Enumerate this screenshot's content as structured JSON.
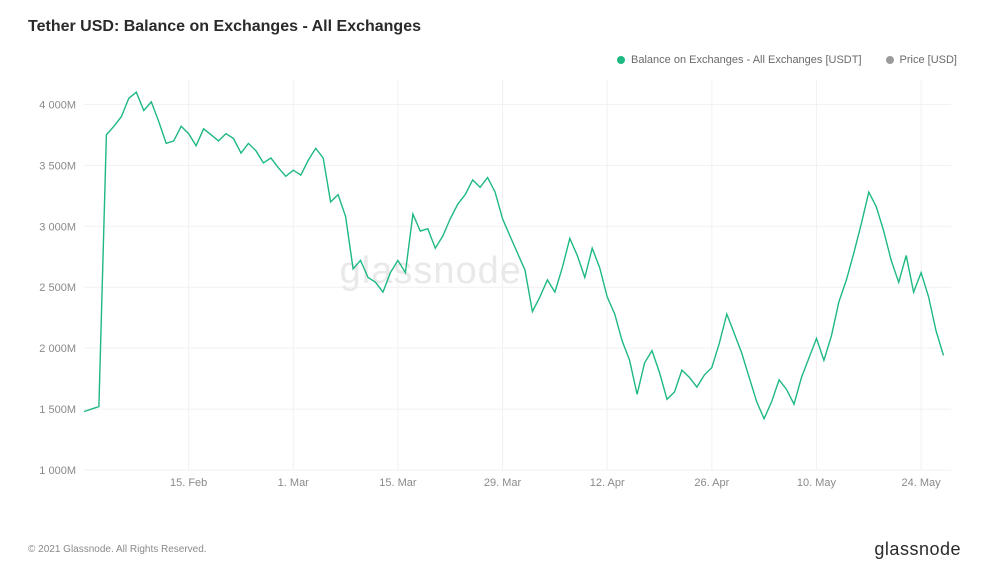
{
  "chart": {
    "type": "line",
    "title": "Tether USD: Balance on Exchanges - All Exchanges",
    "watermark": "glassnode",
    "background_color": "#ffffff",
    "grid_color": "#f1f1f1",
    "axis_text_color": "#8a8a8a",
    "title_color": "#2a2a2a",
    "title_fontsize": 16,
    "tick_fontsize": 11,
    "line_width": 1.4,
    "legend": [
      {
        "label": "Balance on Exchanges - All Exchanges [USDT]",
        "color": "#1eb980"
      },
      {
        "label": "Price [USD]",
        "color": "#9a9a9a"
      }
    ],
    "y_axis": {
      "min": 1000,
      "max": 4200,
      "ticks": [
        1000,
        1500,
        2000,
        2500,
        3000,
        3500,
        4000
      ],
      "tick_labels": [
        "1 000M",
        "1 500M",
        "2 000M",
        "2 500M",
        "3 000M",
        "3 500M",
        "4 000M"
      ]
    },
    "x_axis": {
      "min": 0,
      "max": 116,
      "ticks": [
        14,
        28,
        42,
        56,
        70,
        84,
        98,
        112
      ],
      "tick_labels": [
        "15. Feb",
        "1. Mar",
        "15. Mar",
        "29. Mar",
        "12. Apr",
        "26. Apr",
        "10. May",
        "24. May"
      ]
    },
    "series": [
      {
        "name": "balance",
        "color": "#1eb980",
        "data": [
          [
            0,
            1480
          ],
          [
            1,
            1500
          ],
          [
            2,
            1520
          ],
          [
            3,
            3750
          ],
          [
            4,
            3820
          ],
          [
            5,
            3900
          ],
          [
            6,
            4050
          ],
          [
            7,
            4100
          ],
          [
            8,
            3950
          ],
          [
            9,
            4020
          ],
          [
            10,
            3860
          ],
          [
            11,
            3680
          ],
          [
            12,
            3700
          ],
          [
            13,
            3820
          ],
          [
            14,
            3760
          ],
          [
            15,
            3660
          ],
          [
            16,
            3800
          ],
          [
            17,
            3750
          ],
          [
            18,
            3700
          ],
          [
            19,
            3760
          ],
          [
            20,
            3720
          ],
          [
            21,
            3600
          ],
          [
            22,
            3680
          ],
          [
            23,
            3620
          ],
          [
            24,
            3520
          ],
          [
            25,
            3560
          ],
          [
            26,
            3480
          ],
          [
            27,
            3410
          ],
          [
            28,
            3460
          ],
          [
            29,
            3420
          ],
          [
            30,
            3540
          ],
          [
            31,
            3640
          ],
          [
            32,
            3560
          ],
          [
            33,
            3200
          ],
          [
            34,
            3260
          ],
          [
            35,
            3080
          ],
          [
            36,
            2650
          ],
          [
            37,
            2720
          ],
          [
            38,
            2580
          ],
          [
            39,
            2540
          ],
          [
            40,
            2460
          ],
          [
            41,
            2620
          ],
          [
            42,
            2720
          ],
          [
            43,
            2620
          ],
          [
            44,
            3100
          ],
          [
            45,
            2960
          ],
          [
            46,
            2980
          ],
          [
            47,
            2820
          ],
          [
            48,
            2920
          ],
          [
            49,
            3060
          ],
          [
            50,
            3180
          ],
          [
            51,
            3260
          ],
          [
            52,
            3380
          ],
          [
            53,
            3320
          ],
          [
            54,
            3400
          ],
          [
            55,
            3280
          ],
          [
            56,
            3060
          ],
          [
            57,
            2920
          ],
          [
            58,
            2780
          ],
          [
            59,
            2640
          ],
          [
            60,
            2300
          ],
          [
            61,
            2420
          ],
          [
            62,
            2560
          ],
          [
            63,
            2460
          ],
          [
            64,
            2660
          ],
          [
            65,
            2900
          ],
          [
            66,
            2760
          ],
          [
            67,
            2580
          ],
          [
            68,
            2820
          ],
          [
            69,
            2660
          ],
          [
            70,
            2420
          ],
          [
            71,
            2280
          ],
          [
            72,
            2060
          ],
          [
            73,
            1900
          ],
          [
            74,
            1620
          ],
          [
            75,
            1880
          ],
          [
            76,
            1980
          ],
          [
            77,
            1800
          ],
          [
            78,
            1580
          ],
          [
            79,
            1640
          ],
          [
            80,
            1820
          ],
          [
            81,
            1760
          ],
          [
            82,
            1680
          ],
          [
            83,
            1780
          ],
          [
            84,
            1840
          ],
          [
            85,
            2040
          ],
          [
            86,
            2280
          ],
          [
            87,
            2120
          ],
          [
            88,
            1960
          ],
          [
            89,
            1760
          ],
          [
            90,
            1560
          ],
          [
            91,
            1420
          ],
          [
            92,
            1560
          ],
          [
            93,
            1740
          ],
          [
            94,
            1660
          ],
          [
            95,
            1540
          ],
          [
            96,
            1760
          ],
          [
            97,
            1920
          ],
          [
            98,
            2080
          ],
          [
            99,
            1900
          ],
          [
            100,
            2100
          ],
          [
            101,
            2380
          ],
          [
            102,
            2560
          ],
          [
            103,
            2780
          ],
          [
            104,
            3020
          ],
          [
            105,
            3280
          ],
          [
            106,
            3160
          ],
          [
            107,
            2960
          ],
          [
            108,
            2720
          ],
          [
            109,
            2540
          ],
          [
            110,
            2760
          ],
          [
            111,
            2460
          ],
          [
            112,
            2620
          ],
          [
            113,
            2420
          ],
          [
            114,
            2140
          ],
          [
            115,
            1940
          ]
        ]
      }
    ]
  },
  "footer": {
    "copyright": "© 2021 Glassnode. All Rights Reserved.",
    "brand": "glassnode"
  }
}
